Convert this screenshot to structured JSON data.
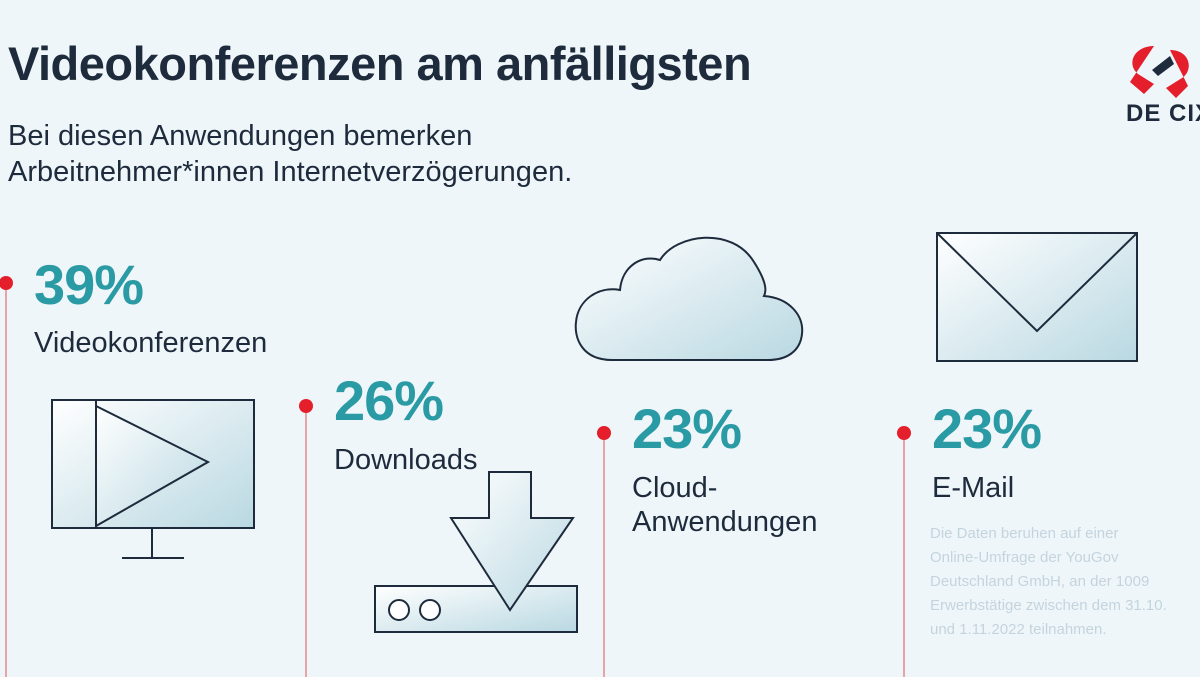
{
  "header": {
    "title": "Videokonferenzen am anfälligsten",
    "subtitle_line1": "Bei diesen Anwendungen bemerken",
    "subtitle_line2": "Arbeitnehmer*innen Internetverzögerungen."
  },
  "logo": {
    "name": "DE-CIX logo",
    "text": "DE CIX"
  },
  "colors": {
    "accent": "#2a9aa4",
    "marker": "#e41e2b",
    "text": "#1d2b3c",
    "background": "#eff6fa"
  },
  "chart_data": {
    "type": "bar",
    "title": "Videokonferenzen am anfälligsten",
    "subtitle": "Bei diesen Anwendungen bemerken Arbeitnehmer*innen Internetverzögerungen.",
    "unit": "%",
    "categories": [
      "Videokonferenzen",
      "Downloads",
      "Cloud-Anwendungen",
      "E-Mail"
    ],
    "values": [
      39,
      26,
      23,
      23
    ],
    "value_labels": [
      "39%",
      "26%",
      "23%",
      "23%"
    ],
    "label_lines": [
      [
        "Videokonferenzen"
      ],
      [
        "Downloads"
      ],
      [
        "Cloud-",
        "Anwendungen"
      ],
      [
        "E-Mail"
      ]
    ],
    "icons": [
      "video-monitor-icon",
      "download-icon",
      "cloud-icon",
      "envelope-icon"
    ]
  },
  "footnote": {
    "lines": [
      "Die Daten beruhen auf einer",
      "Online-Umfrage der YouGov",
      "Deutschland GmbH, an der 1009",
      "Erwerbstätige zwischen dem 31.10.",
      "und 1.11.2022 teilnahmen."
    ]
  }
}
